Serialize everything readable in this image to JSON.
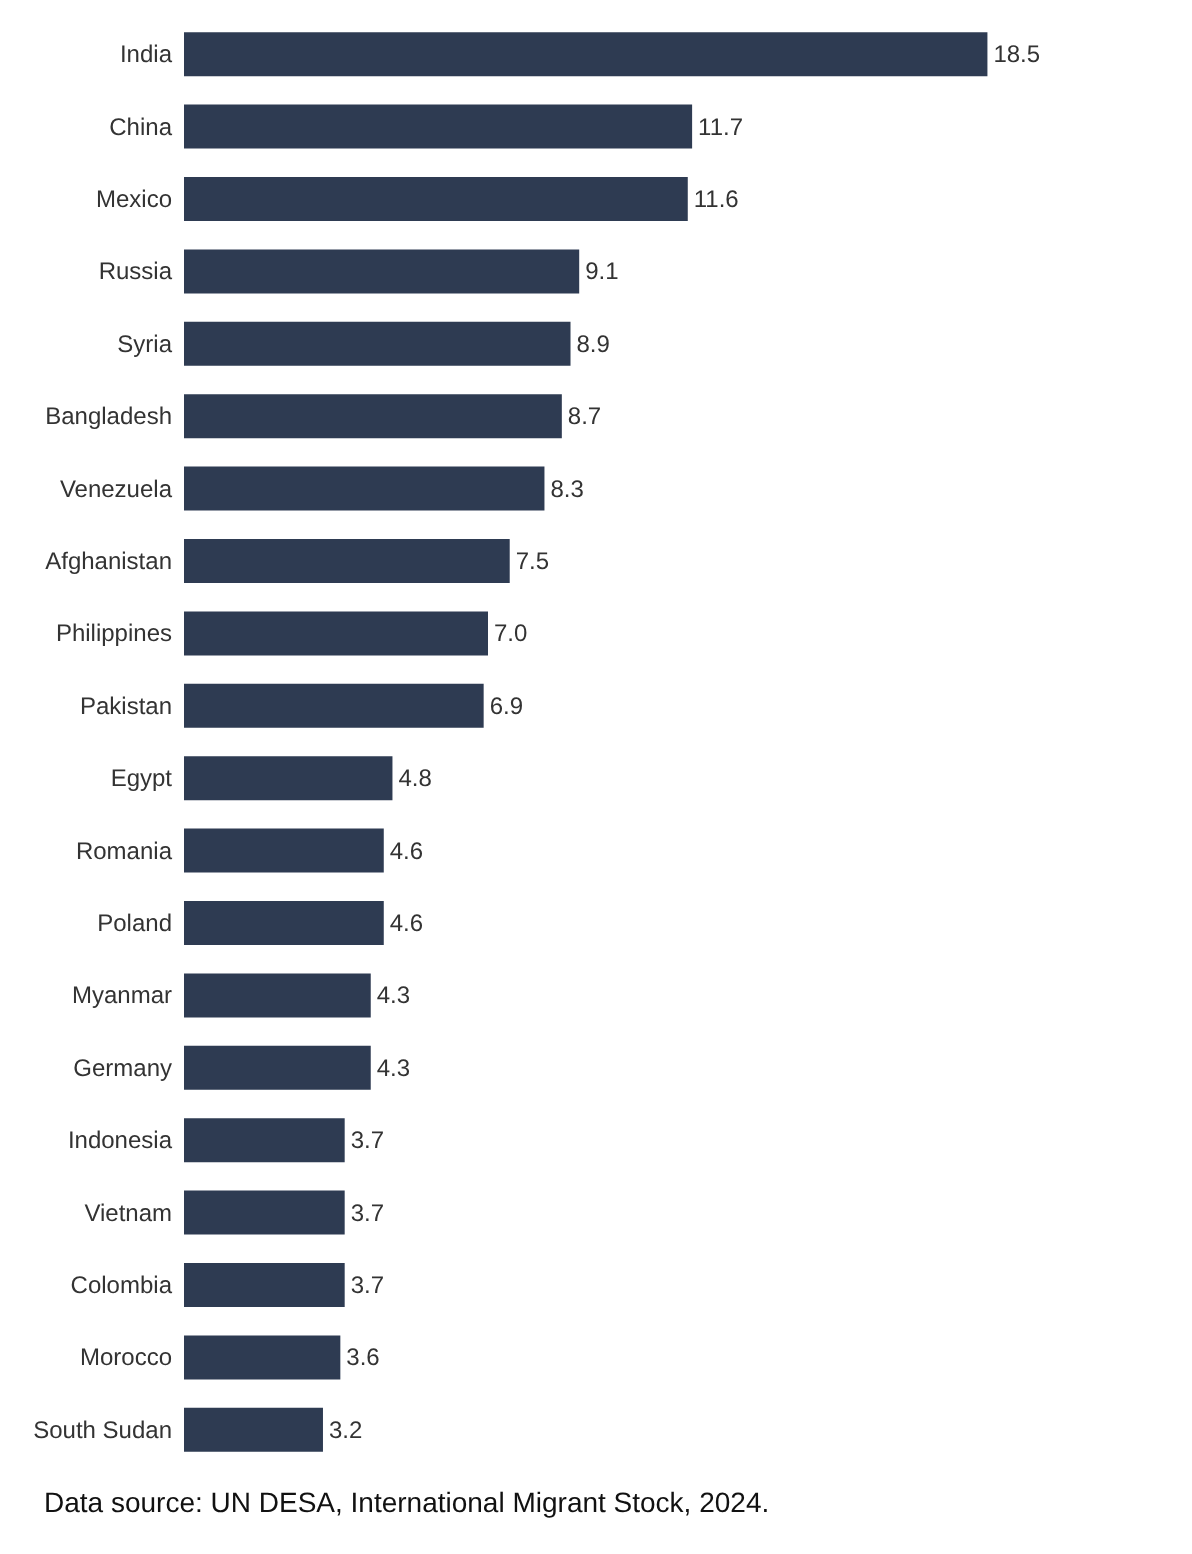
{
  "chart_data": {
    "type": "bar",
    "orientation": "horizontal",
    "categories": [
      "India",
      "China",
      "Mexico",
      "Russia",
      "Syria",
      "Bangladesh",
      "Venezuela",
      "Afghanistan",
      "Philippines",
      "Pakistan",
      "Egypt",
      "Romania",
      "Poland",
      "Myanmar",
      "Germany",
      "Indonesia",
      "Vietnam",
      "Colombia",
      "Morocco",
      "South Sudan"
    ],
    "values": [
      18.5,
      11.7,
      11.6,
      9.1,
      8.9,
      8.7,
      8.3,
      7.5,
      7.0,
      6.9,
      4.8,
      4.6,
      4.6,
      4.3,
      4.3,
      3.7,
      3.7,
      3.7,
      3.6,
      3.2
    ],
    "value_labels": [
      "18.5",
      "11.7",
      "11.6",
      "9.1",
      "8.9",
      "8.7",
      "8.3",
      "7.5",
      "7.0",
      "6.9",
      "4.8",
      "4.6",
      "4.6",
      "4.3",
      "4.3",
      "3.7",
      "3.7",
      "3.7",
      "3.6",
      "3.2"
    ],
    "color": "#2e3b52",
    "tick_labels": "y",
    "annotations": [
      "Data source: UN DESA, International Migrant Stock, 2024."
    ]
  }
}
